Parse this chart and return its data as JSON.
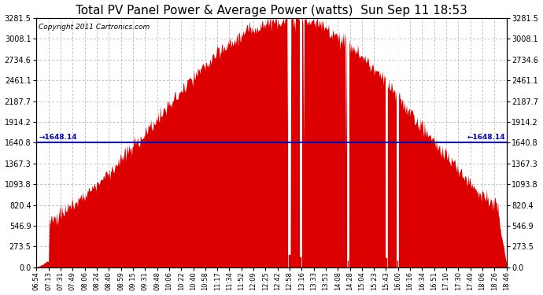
{
  "title": "Total PV Panel Power & Average Power (watts)  Sun Sep 11 18:53",
  "copyright": "Copyright 2011 Cartronics.com",
  "avg_line_y": 1648.14,
  "ymax": 3281.5,
  "ymin": 0.0,
  "yticks": [
    0.0,
    273.5,
    546.9,
    820.4,
    1093.8,
    1367.3,
    1640.8,
    1914.2,
    2187.7,
    2461.1,
    2734.6,
    3008.1,
    3281.5
  ],
  "bar_color": "#dd0000",
  "avg_line_color": "#0000bb",
  "background_color": "#ffffff",
  "grid_color": "#aaaaaa",
  "title_fontsize": 11,
  "copyright_fontsize": 6.5,
  "xtick_labels": [
    "06:54",
    "07:13",
    "07:31",
    "07:49",
    "08:06",
    "08:24",
    "08:40",
    "08:59",
    "09:15",
    "09:31",
    "09:48",
    "10:06",
    "10:22",
    "10:40",
    "10:58",
    "11:17",
    "11:34",
    "11:52",
    "12:09",
    "12:25",
    "12:42",
    "12:58",
    "13:16",
    "13:33",
    "13:51",
    "14:08",
    "14:28",
    "15:04",
    "15:23",
    "15:43",
    "16:00",
    "16:16",
    "16:34",
    "16:51",
    "17:10",
    "17:30",
    "17:49",
    "18:06",
    "18:26",
    "18:46"
  ]
}
